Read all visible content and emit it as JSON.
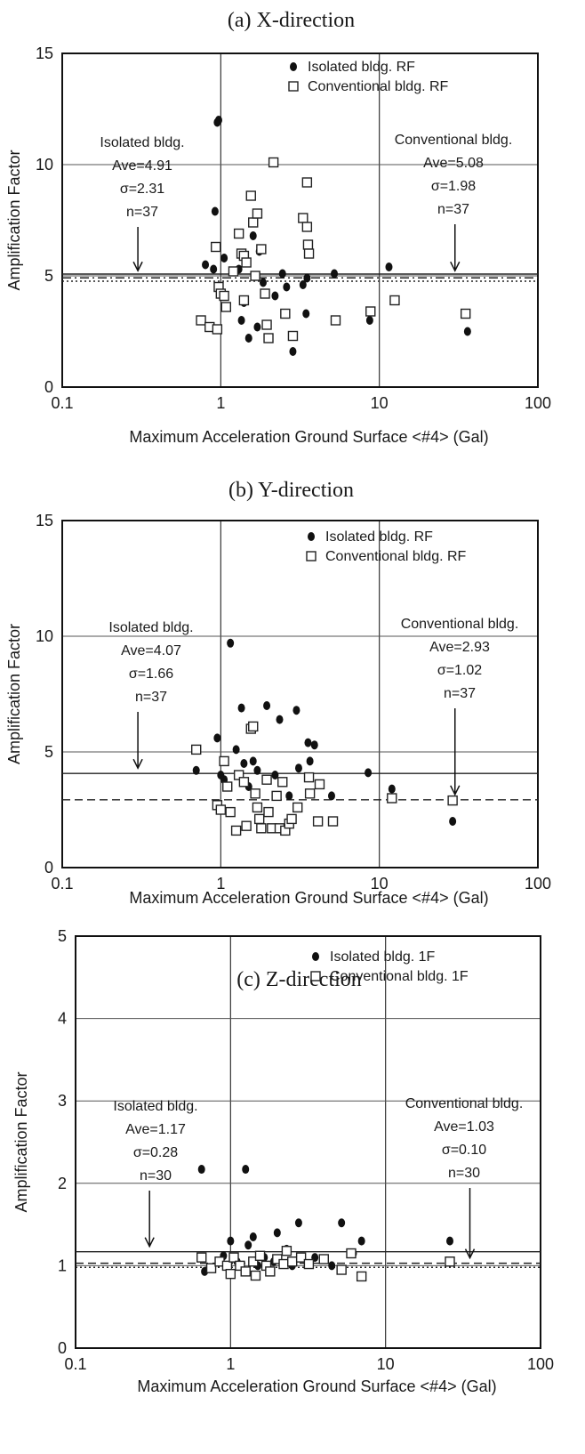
{
  "chart_data": [
    {
      "type": "scatter",
      "title": "(a)  X-direction",
      "xlabel": "Maximum Acceleration Ground Surface <#4> (Gal)",
      "ylabel": "Amplification Factor",
      "xscale": "log",
      "xlim": [
        0.1,
        100
      ],
      "ylim": [
        0,
        15
      ],
      "xticks": [
        "0.1",
        "1",
        "10",
        "100"
      ],
      "yticks": [
        "0",
        "5",
        "10",
        "15"
      ],
      "legend_position": "top-right",
      "series": [
        {
          "name": "Isolated bldg.  RF",
          "marker": "filled-circle",
          "points": [
            [
              0.8,
              5.5
            ],
            [
              0.95,
              11.9
            ],
            [
              0.97,
              12.0
            ],
            [
              0.92,
              7.9
            ],
            [
              1.05,
              5.8
            ],
            [
              0.9,
              5.3
            ],
            [
              1.3,
              5.3
            ],
            [
              1.35,
              3.0
            ],
            [
              1.4,
              3.8
            ],
            [
              1.5,
              2.2
            ],
            [
              1.6,
              6.8
            ],
            [
              1.65,
              5.0
            ],
            [
              1.7,
              2.7
            ],
            [
              1.75,
              6.1
            ],
            [
              1.85,
              4.7
            ],
            [
              2.2,
              4.1
            ],
            [
              2.45,
              5.1
            ],
            [
              2.6,
              4.5
            ],
            [
              2.85,
              1.6
            ],
            [
              3.3,
              4.6
            ],
            [
              3.5,
              4.9
            ],
            [
              3.45,
              3.3
            ],
            [
              5.2,
              5.1
            ],
            [
              8.7,
              3.0
            ],
            [
              11.5,
              5.4
            ],
            [
              36,
              2.5
            ]
          ]
        },
        {
          "name": "Conventional bldg.  RF",
          "marker": "open-square",
          "points": [
            [
              0.75,
              3.0
            ],
            [
              0.85,
              2.7
            ],
            [
              0.93,
              6.3
            ],
            [
              0.97,
              4.5
            ],
            [
              0.95,
              2.6
            ],
            [
              1.0,
              4.2
            ],
            [
              1.05,
              4.1
            ],
            [
              1.08,
              3.6
            ],
            [
              1.2,
              5.2
            ],
            [
              1.3,
              6.9
            ],
            [
              1.35,
              6.0
            ],
            [
              1.4,
              5.9
            ],
            [
              1.45,
              5.6
            ],
            [
              1.4,
              3.9
            ],
            [
              1.55,
              8.6
            ],
            [
              1.6,
              7.4
            ],
            [
              1.7,
              7.8
            ],
            [
              1.8,
              6.2
            ],
            [
              1.65,
              5.0
            ],
            [
              1.9,
              4.2
            ],
            [
              1.95,
              2.8
            ],
            [
              2.0,
              2.2
            ],
            [
              2.15,
              10.1
            ],
            [
              2.55,
              3.3
            ],
            [
              2.85,
              2.3
            ],
            [
              3.3,
              7.6
            ],
            [
              3.5,
              9.2
            ],
            [
              3.5,
              7.2
            ],
            [
              3.55,
              6.4
            ],
            [
              3.6,
              6.0
            ],
            [
              5.3,
              3.0
            ],
            [
              8.8,
              3.4
            ],
            [
              12.5,
              3.9
            ],
            [
              35,
              3.3
            ]
          ]
        }
      ],
      "reference_lines": [
        {
          "label": "Isolated bldg. Ave",
          "y": 4.91,
          "style": "dash-dot"
        },
        {
          "label": "Isolated bldg. Ave",
          "y": 4.91,
          "style": "dotted",
          "offset": -0.15
        },
        {
          "label": "Conventional bldg. Ave",
          "y": 5.08,
          "style": "solid"
        }
      ],
      "annotations": [
        {
          "lines": [
            "Isolated bldg.",
            "Ave=4.91",
            "σ=2.31",
            "n=37"
          ],
          "arrow_x": 0.3
        },
        {
          "lines": [
            "Conventional bldg.",
            "Ave=5.08",
            "σ=1.98",
            "n=37"
          ],
          "arrow_x": 30
        }
      ]
    },
    {
      "type": "scatter",
      "title": "(b)  Y-direction",
      "xlabel": "Maximum Acceleration Ground Surface <#4> (Gal)",
      "ylabel": "Amplification Factor",
      "xscale": "log",
      "xlim": [
        0.1,
        100
      ],
      "ylim": [
        0,
        15
      ],
      "xticks": [
        "0.1",
        "1",
        "10",
        "100"
      ],
      "yticks": [
        "0",
        "5",
        "10",
        "15"
      ],
      "legend_position": "top-right",
      "series": [
        {
          "name": "Isolated bldg.  RF",
          "marker": "filled-circle",
          "points": [
            [
              0.7,
              4.2
            ],
            [
              0.95,
              5.6
            ],
            [
              1.0,
              4.0
            ],
            [
              1.05,
              3.8
            ],
            [
              1.15,
              9.7
            ],
            [
              1.25,
              5.1
            ],
            [
              1.35,
              6.9
            ],
            [
              1.4,
              4.5
            ],
            [
              1.5,
              3.5
            ],
            [
              1.6,
              4.6
            ],
            [
              1.7,
              4.2
            ],
            [
              1.95,
              7.0
            ],
            [
              2.2,
              4.0
            ],
            [
              2.35,
              6.4
            ],
            [
              2.7,
              3.1
            ],
            [
              3.0,
              6.8
            ],
            [
              3.1,
              4.3
            ],
            [
              3.55,
              5.4
            ],
            [
              3.65,
              4.6
            ],
            [
              3.9,
              5.3
            ],
            [
              5.0,
              3.1
            ],
            [
              8.5,
              4.1
            ],
            [
              12,
              3.4
            ],
            [
              29,
              2.0
            ]
          ]
        },
        {
          "name": "Conventional bldg.  RF",
          "marker": "open-square",
          "points": [
            [
              0.7,
              5.1
            ],
            [
              0.95,
              2.7
            ],
            [
              1.0,
              2.5
            ],
            [
              1.05,
              4.6
            ],
            [
              1.1,
              3.5
            ],
            [
              1.15,
              2.4
            ],
            [
              1.25,
              1.6
            ],
            [
              1.3,
              4.0
            ],
            [
              1.4,
              3.7
            ],
            [
              1.45,
              1.8
            ],
            [
              1.55,
              6.0
            ],
            [
              1.6,
              6.1
            ],
            [
              1.65,
              3.2
            ],
            [
              1.7,
              2.6
            ],
            [
              1.75,
              2.1
            ],
            [
              1.8,
              1.7
            ],
            [
              1.95,
              3.8
            ],
            [
              2.0,
              2.4
            ],
            [
              2.1,
              1.7
            ],
            [
              2.25,
              3.1
            ],
            [
              2.35,
              1.7
            ],
            [
              2.45,
              3.7
            ],
            [
              2.55,
              1.6
            ],
            [
              2.7,
              1.9
            ],
            [
              2.8,
              2.1
            ],
            [
              3.05,
              2.6
            ],
            [
              3.6,
              3.9
            ],
            [
              3.65,
              3.2
            ],
            [
              4.1,
              2.0
            ],
            [
              4.2,
              3.6
            ],
            [
              5.1,
              2.0
            ],
            [
              12,
              3.0
            ],
            [
              29,
              2.9
            ]
          ]
        }
      ],
      "reference_lines": [
        {
          "label": "Isolated bldg. Ave",
          "y": 4.07,
          "style": "solid"
        },
        {
          "label": "Conventional bldg. Ave",
          "y": 2.93,
          "style": "dashed"
        }
      ],
      "annotations": [
        {
          "lines": [
            "Isolated bldg.",
            "Ave=4.07",
            "σ=1.66",
            "n=37"
          ],
          "arrow_x": 0.3
        },
        {
          "lines": [
            "Conventional bldg.",
            "Ave=2.93",
            "σ=1.02",
            "n=37"
          ],
          "arrow_x": 30
        }
      ]
    },
    {
      "type": "scatter",
      "title": "(c)  Z-direction",
      "xlabel": "Maximum Acceleration Ground Surface <#4> (Gal)",
      "ylabel": "Amplification Factor",
      "xscale": "log",
      "xlim": [
        0.1,
        100
      ],
      "ylim": [
        0,
        5
      ],
      "xticks": [
        "0.1",
        "1",
        "10",
        "100"
      ],
      "yticks": [
        "0",
        "1",
        "2",
        "3",
        "4",
        "5"
      ],
      "legend_position": "top-right",
      "series": [
        {
          "name": "Isolated bldg.  1F",
          "marker": "filled-circle",
          "points": [
            [
              0.65,
              2.17
            ],
            [
              0.68,
              0.93
            ],
            [
              0.9,
              1.12
            ],
            [
              1.0,
              1.3
            ],
            [
              1.1,
              1.05
            ],
            [
              1.25,
              2.17
            ],
            [
              1.3,
              1.25
            ],
            [
              1.4,
              1.35
            ],
            [
              1.5,
              1.0
            ],
            [
              1.65,
              1.1
            ],
            [
              1.9,
              1.05
            ],
            [
              2.0,
              1.4
            ],
            [
              2.3,
              1.2
            ],
            [
              2.5,
              1.0
            ],
            [
              2.75,
              1.52
            ],
            [
              3.5,
              1.1
            ],
            [
              4.5,
              1.0
            ],
            [
              5.2,
              1.52
            ],
            [
              6.2,
              1.15
            ],
            [
              7.0,
              1.3
            ],
            [
              26,
              1.3
            ]
          ]
        },
        {
          "name": "Conventional bldg.  1F",
          "marker": "open-square",
          "points": [
            [
              0.65,
              1.1
            ],
            [
              0.75,
              0.97
            ],
            [
              0.85,
              1.05
            ],
            [
              0.95,
              1.0
            ],
            [
              1.0,
              0.9
            ],
            [
              1.05,
              1.1
            ],
            [
              1.15,
              1.0
            ],
            [
              1.25,
              0.93
            ],
            [
              1.4,
              1.05
            ],
            [
              1.45,
              0.88
            ],
            [
              1.55,
              1.12
            ],
            [
              1.7,
              1.0
            ],
            [
              1.8,
              0.93
            ],
            [
              2.0,
              1.08
            ],
            [
              2.2,
              1.02
            ],
            [
              2.3,
              1.18
            ],
            [
              2.5,
              1.05
            ],
            [
              2.85,
              1.1
            ],
            [
              3.2,
              1.02
            ],
            [
              4.0,
              1.08
            ],
            [
              5.2,
              0.95
            ],
            [
              6.0,
              1.15
            ],
            [
              7.0,
              0.87
            ],
            [
              26,
              1.05
            ]
          ]
        }
      ],
      "reference_lines": [
        {
          "label": "Isolated bldg. Ave",
          "y": 1.17,
          "style": "solid"
        },
        {
          "label": "Conventional bldg. Ave",
          "y": 1.03,
          "style": "dashed"
        },
        {
          "label": "",
          "y": 0.98,
          "style": "dotted"
        }
      ],
      "annotations": [
        {
          "lines": [
            "Isolated bldg.",
            "Ave=1.17",
            "σ=0.28",
            "n=30"
          ],
          "arrow_x": 0.3
        },
        {
          "lines": [
            "Conventional bldg.",
            "Ave=1.03",
            "σ=0.10",
            "n=30"
          ],
          "arrow_x": 35
        }
      ]
    }
  ]
}
